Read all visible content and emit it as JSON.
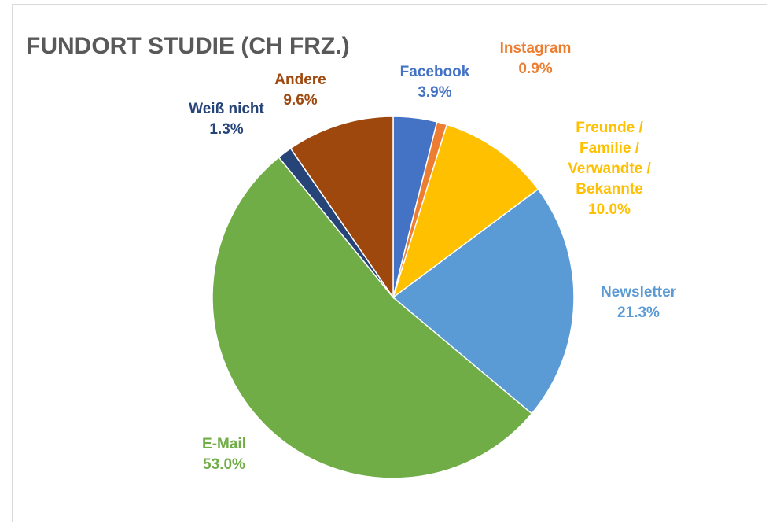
{
  "chart_data": {
    "type": "pie",
    "title": "FUNDORT STUDIE (CH FRZ.)",
    "categories": [
      "Facebook",
      "Instagram",
      "Freunde / Familie / Verwandte / Bekannte",
      "Newsletter",
      "E-Mail",
      "Weiß nicht",
      "Andere"
    ],
    "values": [
      3.9,
      0.9,
      10.0,
      21.3,
      53.0,
      1.3,
      9.6
    ],
    "value_labels": [
      "3.9%",
      "0.9%",
      "10.0%",
      "21.3%",
      "53.0%",
      "1.3%",
      "9.6%"
    ],
    "colors": [
      "#4472c4",
      "#ed7d31",
      "#ffc000",
      "#5b9bd5",
      "#70ad47",
      "#264478",
      "#9e480e"
    ]
  }
}
